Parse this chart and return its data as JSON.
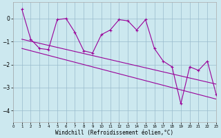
{
  "xlabel": "Windchill (Refroidissement éolien,°C)",
  "bg_color": "#cce8ef",
  "line_color": "#990099",
  "grid_color": "#99bbcc",
  "xlim": [
    0,
    23
  ],
  "ylim": [
    -4.5,
    0.7
  ],
  "yticks": [
    0,
    -1,
    -2,
    -3,
    -4
  ],
  "xticks": [
    0,
    1,
    2,
    3,
    4,
    5,
    6,
    7,
    8,
    9,
    10,
    11,
    12,
    13,
    14,
    15,
    16,
    17,
    18,
    19,
    20,
    21,
    22,
    23
  ],
  "data_x": [
    1,
    2,
    3,
    4,
    5,
    6,
    7,
    8,
    9,
    10,
    11,
    12,
    13,
    14,
    15,
    16,
    17,
    18,
    19,
    20,
    21,
    22,
    23
  ],
  "data_y": [
    0.4,
    -0.9,
    -1.3,
    -1.35,
    -0.05,
    0.0,
    -0.6,
    -1.4,
    -1.5,
    -0.7,
    -0.5,
    -0.05,
    -0.1,
    -0.5,
    -0.05,
    -1.3,
    -1.85,
    -2.1,
    -3.7,
    -2.1,
    -2.25,
    -1.85,
    -3.3
  ],
  "trend1_x": [
    1,
    23
  ],
  "trend1_y": [
    -0.9,
    -2.85
  ],
  "trend2_x": [
    1,
    23
  ],
  "trend2_y": [
    -1.3,
    -3.5
  ],
  "xlabel_color": "#000000",
  "spine_color": "#aaaaaa",
  "tick_fontsize": 5.5,
  "xlabel_fontsize": 5.5
}
